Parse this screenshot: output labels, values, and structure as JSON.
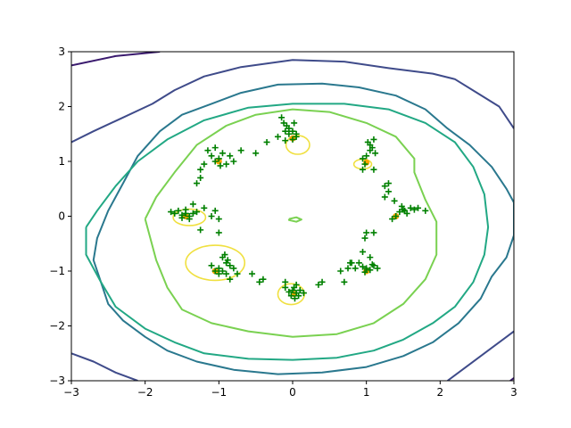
{
  "chart_data": {
    "type": "scatter",
    "title": "",
    "xlabel": "",
    "ylabel": "",
    "xlim": [
      -3,
      3
    ],
    "ylim": [
      -3,
      3
    ],
    "xticks": [
      -3,
      -2,
      -1,
      0,
      1,
      2,
      3
    ],
    "yticks": [
      -3,
      -2,
      -1,
      0,
      1,
      2,
      3
    ],
    "xtick_labels": [
      "−3",
      "−2",
      "−1",
      "0",
      "1",
      "2",
      "3"
    ],
    "ytick_labels": [
      "−3",
      "−2",
      "−1",
      "0",
      "1",
      "2",
      "3"
    ],
    "grid": false,
    "legend": "none",
    "colors": {
      "samples": "#008000",
      "mode_centers": "#ffa500",
      "ellipses": "#f0e040"
    },
    "contours": [
      {
        "color": "#3a1a6e",
        "points": [
          [
            -3.0,
            2.75
          ],
          [
            -2.4,
            2.92
          ],
          [
            -1.8,
            3.0
          ]
        ]
      },
      {
        "color": "#3a1a6e",
        "points": [
          [
            2.95,
            -3.0
          ],
          [
            3.0,
            -2.95
          ]
        ]
      },
      {
        "color": "#3f4b8a",
        "points": [
          [
            -3.0,
            1.35
          ],
          [
            -2.7,
            1.55
          ],
          [
            -2.3,
            1.8
          ],
          [
            -1.9,
            2.05
          ],
          [
            -1.6,
            2.3
          ],
          [
            -1.2,
            2.55
          ],
          [
            -0.7,
            2.72
          ],
          [
            0.0,
            2.85
          ],
          [
            0.7,
            2.82
          ],
          [
            1.3,
            2.7
          ],
          [
            1.9,
            2.6
          ],
          [
            2.2,
            2.5
          ],
          [
            2.5,
            2.25
          ],
          [
            2.8,
            2.0
          ],
          [
            2.95,
            1.7
          ],
          [
            3.0,
            1.6
          ]
        ]
      },
      {
        "color": "#3f4b8a",
        "points": [
          [
            -3.0,
            -2.5
          ],
          [
            -2.7,
            -2.65
          ],
          [
            -2.4,
            -2.85
          ],
          [
            -2.1,
            -3.0
          ]
        ]
      },
      {
        "color": "#3f4b8a",
        "points": [
          [
            2.1,
            -3.0
          ],
          [
            2.4,
            -2.7
          ],
          [
            2.7,
            -2.4
          ],
          [
            2.9,
            -2.2
          ],
          [
            3.0,
            -2.1
          ]
        ]
      },
      {
        "color": "#2a788e",
        "points": [
          [
            -2.3,
            0.6
          ],
          [
            -2.1,
            1.1
          ],
          [
            -1.8,
            1.55
          ],
          [
            -1.5,
            1.85
          ],
          [
            -1.1,
            2.05
          ],
          [
            -0.7,
            2.25
          ],
          [
            -0.2,
            2.4
          ],
          [
            0.4,
            2.42
          ],
          [
            0.9,
            2.35
          ],
          [
            1.4,
            2.2
          ],
          [
            1.8,
            1.95
          ],
          [
            2.1,
            1.6
          ],
          [
            2.4,
            1.3
          ],
          [
            2.7,
            0.9
          ],
          [
            2.9,
            0.5
          ],
          [
            3.0,
            0.25
          ],
          [
            3.0,
            -0.35
          ],
          [
            2.9,
            -0.75
          ],
          [
            2.7,
            -1.1
          ],
          [
            2.55,
            -1.5
          ],
          [
            2.25,
            -1.95
          ],
          [
            1.9,
            -2.3
          ],
          [
            1.5,
            -2.55
          ],
          [
            1.0,
            -2.75
          ],
          [
            0.4,
            -2.85
          ],
          [
            -0.2,
            -2.88
          ],
          [
            -0.8,
            -2.8
          ],
          [
            -1.3,
            -2.65
          ],
          [
            -1.7,
            -2.45
          ],
          [
            -2.0,
            -2.2
          ],
          [
            -2.3,
            -1.9
          ],
          [
            -2.5,
            -1.6
          ],
          [
            -2.6,
            -1.2
          ],
          [
            -2.7,
            -0.8
          ],
          [
            -2.65,
            -0.4
          ],
          [
            -2.5,
            0.1
          ],
          [
            -2.3,
            0.6
          ]
        ]
      },
      {
        "color": "#22a884",
        "points": [
          [
            -2.8,
            -0.2
          ],
          [
            -2.8,
            -0.7
          ],
          [
            -2.6,
            -1.2
          ],
          [
            -2.4,
            -1.65
          ],
          [
            -2.0,
            -2.05
          ],
          [
            -1.6,
            -2.3
          ],
          [
            -1.2,
            -2.5
          ],
          [
            -0.6,
            -2.6
          ],
          [
            0.0,
            -2.62
          ],
          [
            0.6,
            -2.58
          ],
          [
            1.1,
            -2.45
          ],
          [
            1.5,
            -2.25
          ],
          [
            1.9,
            -1.95
          ],
          [
            2.2,
            -1.65
          ],
          [
            2.45,
            -1.2
          ],
          [
            2.6,
            -0.7
          ],
          [
            2.65,
            -0.2
          ],
          [
            2.6,
            0.4
          ],
          [
            2.45,
            0.9
          ],
          [
            2.2,
            1.35
          ],
          [
            1.8,
            1.7
          ],
          [
            1.3,
            1.95
          ],
          [
            0.7,
            2.05
          ],
          [
            0.0,
            2.05
          ],
          [
            -0.6,
            1.98
          ],
          [
            -1.2,
            1.75
          ],
          [
            -1.7,
            1.4
          ],
          [
            -2.1,
            1.0
          ],
          [
            -2.4,
            0.55
          ],
          [
            -2.65,
            0.1
          ],
          [
            -2.8,
            -0.2
          ]
        ]
      },
      {
        "color": "#7ad151",
        "points": [
          [
            -2.0,
            -0.05
          ],
          [
            -1.85,
            -0.8
          ],
          [
            -1.7,
            -1.3
          ],
          [
            -1.5,
            -1.7
          ],
          [
            -1.1,
            -1.95
          ],
          [
            -0.6,
            -2.1
          ],
          [
            0.0,
            -2.2
          ],
          [
            0.6,
            -2.15
          ],
          [
            1.1,
            -1.95
          ],
          [
            1.5,
            -1.6
          ],
          [
            1.8,
            -1.15
          ],
          [
            1.95,
            -0.7
          ],
          [
            1.95,
            -0.1
          ],
          [
            1.8,
            0.3
          ],
          [
            1.65,
            0.8
          ],
          [
            1.65,
            1.05
          ],
          [
            1.4,
            1.45
          ],
          [
            1.0,
            1.7
          ],
          [
            0.5,
            1.9
          ],
          [
            0.0,
            1.95
          ],
          [
            -0.5,
            1.85
          ],
          [
            -0.9,
            1.65
          ],
          [
            -1.3,
            1.3
          ],
          [
            -1.6,
            0.8
          ],
          [
            -1.85,
            0.35
          ],
          [
            -2.0,
            -0.05
          ]
        ]
      },
      {
        "color": "#7ad151",
        "points": [
          [
            -0.05,
            -0.05
          ],
          [
            0.05,
            -0.02
          ],
          [
            0.12,
            -0.06
          ],
          [
            0.05,
            -0.1
          ],
          [
            -0.05,
            -0.07
          ],
          [
            -0.05,
            -0.05
          ]
        ]
      }
    ],
    "ellipses": [
      {
        "cx": 0.07,
        "cy": 1.3,
        "rx": 0.16,
        "ry": 0.17
      },
      {
        "cx": 0.95,
        "cy": 0.95,
        "rx": 0.12,
        "ry": 0.09
      },
      {
        "cx": -1.4,
        "cy": -0.02,
        "rx": 0.22,
        "ry": 0.15
      },
      {
        "cx": -1.05,
        "cy": -0.85,
        "rx": 0.4,
        "ry": 0.32
      },
      {
        "cx": -0.02,
        "cy": -1.42,
        "rx": 0.18,
        "ry": 0.19
      }
    ],
    "mode_centers": [
      {
        "x": 0.0,
        "y": 1.42
      },
      {
        "x": 1.0,
        "y": 0.98
      },
      {
        "x": 1.4,
        "y": 0.0
      },
      {
        "x": 1.0,
        "y": -1.0
      },
      {
        "x": 0.02,
        "y": -1.42
      },
      {
        "x": -1.05,
        "y": -1.0
      },
      {
        "x": -1.45,
        "y": 0.0
      },
      {
        "x": -1.0,
        "y": 1.0
      }
    ],
    "sample_points": [
      [
        -0.15,
        1.8
      ],
      [
        -0.05,
        1.6
      ],
      [
        0.0,
        1.55
      ],
      [
        -0.08,
        1.65
      ],
      [
        0.02,
        1.7
      ],
      [
        -0.1,
        1.55
      ],
      [
        0.05,
        1.5
      ],
      [
        -0.2,
        1.45
      ],
      [
        -0.35,
        1.35
      ],
      [
        -0.1,
        1.38
      ],
      [
        0.0,
        1.4
      ],
      [
        0.05,
        1.45
      ],
      [
        -0.05,
        1.5
      ],
      [
        -0.12,
        1.7
      ],
      [
        -1.15,
        1.2
      ],
      [
        -1.1,
        1.1
      ],
      [
        -1.0,
        1.05
      ],
      [
        -0.95,
        1.15
      ],
      [
        -0.85,
        1.1
      ],
      [
        -1.05,
        1.0
      ],
      [
        -0.98,
        0.92
      ],
      [
        -1.2,
        0.95
      ],
      [
        -1.25,
        0.85
      ],
      [
        -1.05,
        1.25
      ],
      [
        -0.7,
        1.2
      ],
      [
        -0.8,
        1.0
      ],
      [
        -0.9,
        0.95
      ],
      [
        -0.5,
        1.15
      ],
      [
        -1.3,
        0.6
      ],
      [
        -1.25,
        0.7
      ],
      [
        1.1,
        1.4
      ],
      [
        1.05,
        1.3
      ],
      [
        1.05,
        1.2
      ],
      [
        1.0,
        1.1
      ],
      [
        0.95,
        1.05
      ],
      [
        1.08,
        1.25
      ],
      [
        1.12,
        1.15
      ],
      [
        1.02,
        1.35
      ],
      [
        0.98,
        0.95
      ],
      [
        0.95,
        0.85
      ],
      [
        1.1,
        0.85
      ],
      [
        1.3,
        0.45
      ],
      [
        1.25,
        0.55
      ],
      [
        1.3,
        0.6
      ],
      [
        1.6,
        0.15
      ],
      [
        1.5,
        0.12
      ],
      [
        1.45,
        0.08
      ],
      [
        1.55,
        0.05
      ],
      [
        1.4,
        0.0
      ],
      [
        1.52,
        0.1
      ],
      [
        1.48,
        0.18
      ],
      [
        1.7,
        0.15
      ],
      [
        1.8,
        0.1
      ],
      [
        1.35,
        -0.05
      ],
      [
        1.25,
        0.35
      ],
      [
        1.38,
        0.28
      ],
      [
        1.65,
        0.12
      ],
      [
        -1.45,
        0.05
      ],
      [
        -1.4,
        0.0
      ],
      [
        -1.5,
        0.02
      ],
      [
        -1.35,
        0.05
      ],
      [
        -1.55,
        0.1
      ],
      [
        -1.4,
        -0.05
      ],
      [
        -1.45,
        0.12
      ],
      [
        -1.3,
        0.08
      ],
      [
        -1.6,
        0.05
      ],
      [
        -1.65,
        0.08
      ],
      [
        -1.5,
        -0.03
      ],
      [
        -1.2,
        0.15
      ],
      [
        -1.35,
        0.22
      ],
      [
        -1.1,
        0.0
      ],
      [
        -1.05,
        0.1
      ],
      [
        -1.0,
        -0.05
      ],
      [
        -1.25,
        -0.25
      ],
      [
        -1.0,
        -0.3
      ],
      [
        -0.95,
        -0.75
      ],
      [
        -0.9,
        -0.85
      ],
      [
        -1.0,
        -0.95
      ],
      [
        -0.85,
        -0.9
      ],
      [
        -0.95,
        -1.0
      ],
      [
        -0.88,
        -0.8
      ],
      [
        -0.92,
        -0.7
      ],
      [
        -1.05,
        -1.0
      ],
      [
        -1.1,
        -0.9
      ],
      [
        -0.8,
        -0.95
      ],
      [
        -0.75,
        -1.05
      ],
      [
        -0.55,
        -1.05
      ],
      [
        -0.4,
        -1.15
      ],
      [
        -0.85,
        -1.15
      ],
      [
        -1.0,
        -1.05
      ],
      [
        -0.9,
        -1.05
      ],
      [
        -0.45,
        -1.2
      ],
      [
        0.0,
        -1.35
      ],
      [
        0.05,
        -1.4
      ],
      [
        -0.02,
        -1.45
      ],
      [
        0.02,
        -1.3
      ],
      [
        0.1,
        -1.35
      ],
      [
        -0.05,
        -1.38
      ],
      [
        0.08,
        -1.45
      ],
      [
        0.03,
        -1.5
      ],
      [
        -0.1,
        -1.3
      ],
      [
        -0.1,
        -1.2
      ],
      [
        0.15,
        -1.4
      ],
      [
        0.05,
        -1.25
      ],
      [
        0.35,
        -1.25
      ],
      [
        0.4,
        -1.2
      ],
      [
        1.0,
        -0.95
      ],
      [
        1.1,
        -0.9
      ],
      [
        0.95,
        -0.92
      ],
      [
        1.05,
        -0.98
      ],
      [
        1.15,
        -0.95
      ],
      [
        0.9,
        -0.85
      ],
      [
        1.08,
        -0.88
      ],
      [
        0.98,
        -1.02
      ],
      [
        0.85,
        -0.95
      ],
      [
        0.78,
        -0.85
      ],
      [
        0.75,
        -0.95
      ],
      [
        0.65,
        -1.0
      ],
      [
        0.95,
        -0.65
      ],
      [
        1.05,
        -0.75
      ],
      [
        1.0,
        -0.3
      ],
      [
        0.98,
        -0.4
      ],
      [
        1.1,
        -0.3
      ],
      [
        0.7,
        -1.2
      ],
      [
        0.8,
        -0.85
      ]
    ]
  }
}
